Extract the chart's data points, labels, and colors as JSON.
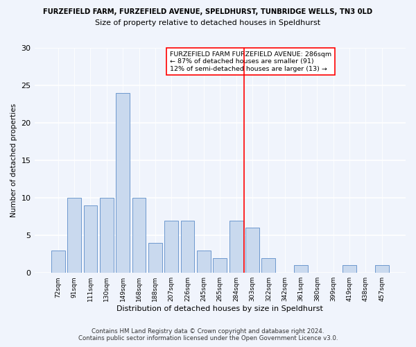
{
  "title1": "FURZEFIELD FARM, FURZEFIELD AVENUE, SPELDHURST, TUNBRIDGE WELLS, TN3 0LD",
  "title2": "Size of property relative to detached houses in Speldhurst",
  "xlabel": "Distribution of detached houses by size in Speldhurst",
  "ylabel": "Number of detached properties",
  "categories": [
    "72sqm",
    "91sqm",
    "111sqm",
    "130sqm",
    "149sqm",
    "168sqm",
    "188sqm",
    "207sqm",
    "226sqm",
    "245sqm",
    "265sqm",
    "284sqm",
    "303sqm",
    "322sqm",
    "342sqm",
    "361sqm",
    "380sqm",
    "399sqm",
    "419sqm",
    "438sqm",
    "457sqm"
  ],
  "values": [
    3,
    10,
    9,
    10,
    24,
    10,
    4,
    7,
    7,
    3,
    2,
    7,
    6,
    2,
    0,
    1,
    0,
    0,
    1,
    0,
    1
  ],
  "bar_color": "#c9d9ee",
  "bar_edge_color": "#5b8cc8",
  "ylim": [
    0,
    30
  ],
  "yticks": [
    0,
    5,
    10,
    15,
    20,
    25,
    30
  ],
  "annotation_title": "FURZEFIELD FARM FURZEFIELD AVENUE: 286sqm",
  "annotation_line1": "← 87% of detached houses are smaller (91)",
  "annotation_line2": "12% of semi-detached houses are larger (13) →",
  "footer1": "Contains HM Land Registry data © Crown copyright and database right 2024.",
  "footer2": "Contains public sector information licensed under the Open Government Licence v3.0.",
  "bg_color": "#f0f4fc",
  "plot_bg_color": "#f0f4fc",
  "grid_color": "#ffffff",
  "vline_x": 11.5,
  "vline_color": "red"
}
